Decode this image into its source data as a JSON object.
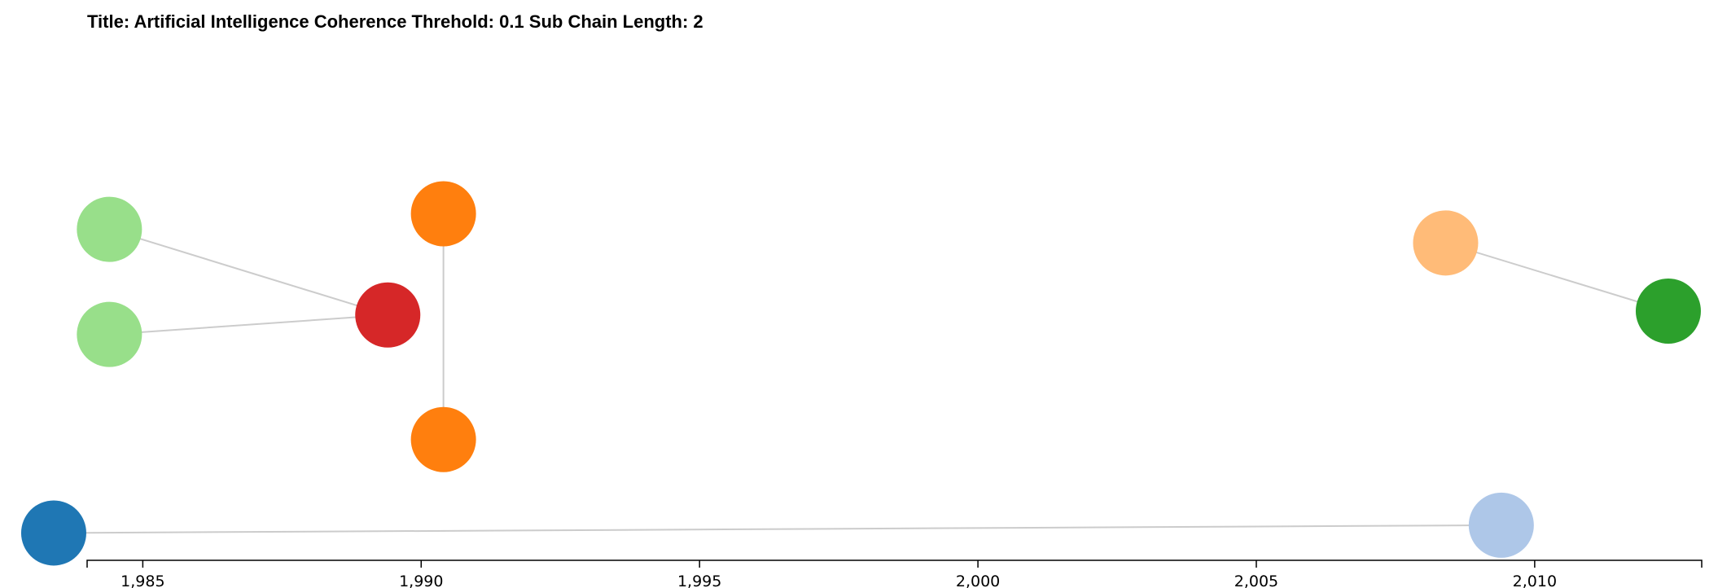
{
  "title": "Title: Artificial Intelligence Coherence Threhold: 0.1 Sub Chain Length: 2",
  "chart_data": {
    "type": "network-timeline",
    "title": "Title: Artificial Intelligence Coherence Threhold: 0.1 Sub Chain Length: 2",
    "xlabel": "",
    "ylabel": "",
    "xlim": [
      1984.0,
      2013.0
    ],
    "x_ticks": [
      1985,
      1990,
      1995,
      2000,
      2005,
      2010
    ],
    "x_tick_labels": [
      "1,985",
      "1,990",
      "1,995",
      "2,000",
      "2,005",
      "2,010"
    ],
    "grid": false,
    "nodes": [
      {
        "id": "n1",
        "x": 1984.4,
        "lane": 0.2,
        "color": "#98df8a"
      },
      {
        "id": "n2",
        "x": 1984.4,
        "lane": 0.47,
        "color": "#98df8a"
      },
      {
        "id": "n3",
        "x": 1989.4,
        "lane": 0.42,
        "color": "#d62728"
      },
      {
        "id": "n4",
        "x": 1990.4,
        "lane": 0.16,
        "color": "#ff7f0e"
      },
      {
        "id": "n5",
        "x": 1990.4,
        "lane": 0.74,
        "color": "#ff7f0e"
      },
      {
        "id": "n6",
        "x": 1983.4,
        "lane": 0.98,
        "color": "#1f77b4"
      },
      {
        "id": "n7",
        "x": 2008.4,
        "lane": 0.235,
        "color": "#ffbb78"
      },
      {
        "id": "n8",
        "x": 2012.4,
        "lane": 0.41,
        "color": "#2ca02c"
      },
      {
        "id": "n9",
        "x": 2009.4,
        "lane": 0.96,
        "color": "#aec7e8"
      }
    ],
    "links": [
      {
        "source": "n1",
        "target": "n3"
      },
      {
        "source": "n2",
        "target": "n3"
      },
      {
        "source": "n4",
        "target": "n5"
      },
      {
        "source": "n7",
        "target": "n8"
      },
      {
        "source": "n6",
        "target": "n9"
      }
    ],
    "link_color": "#cccccc",
    "axis_color": "#000000"
  }
}
